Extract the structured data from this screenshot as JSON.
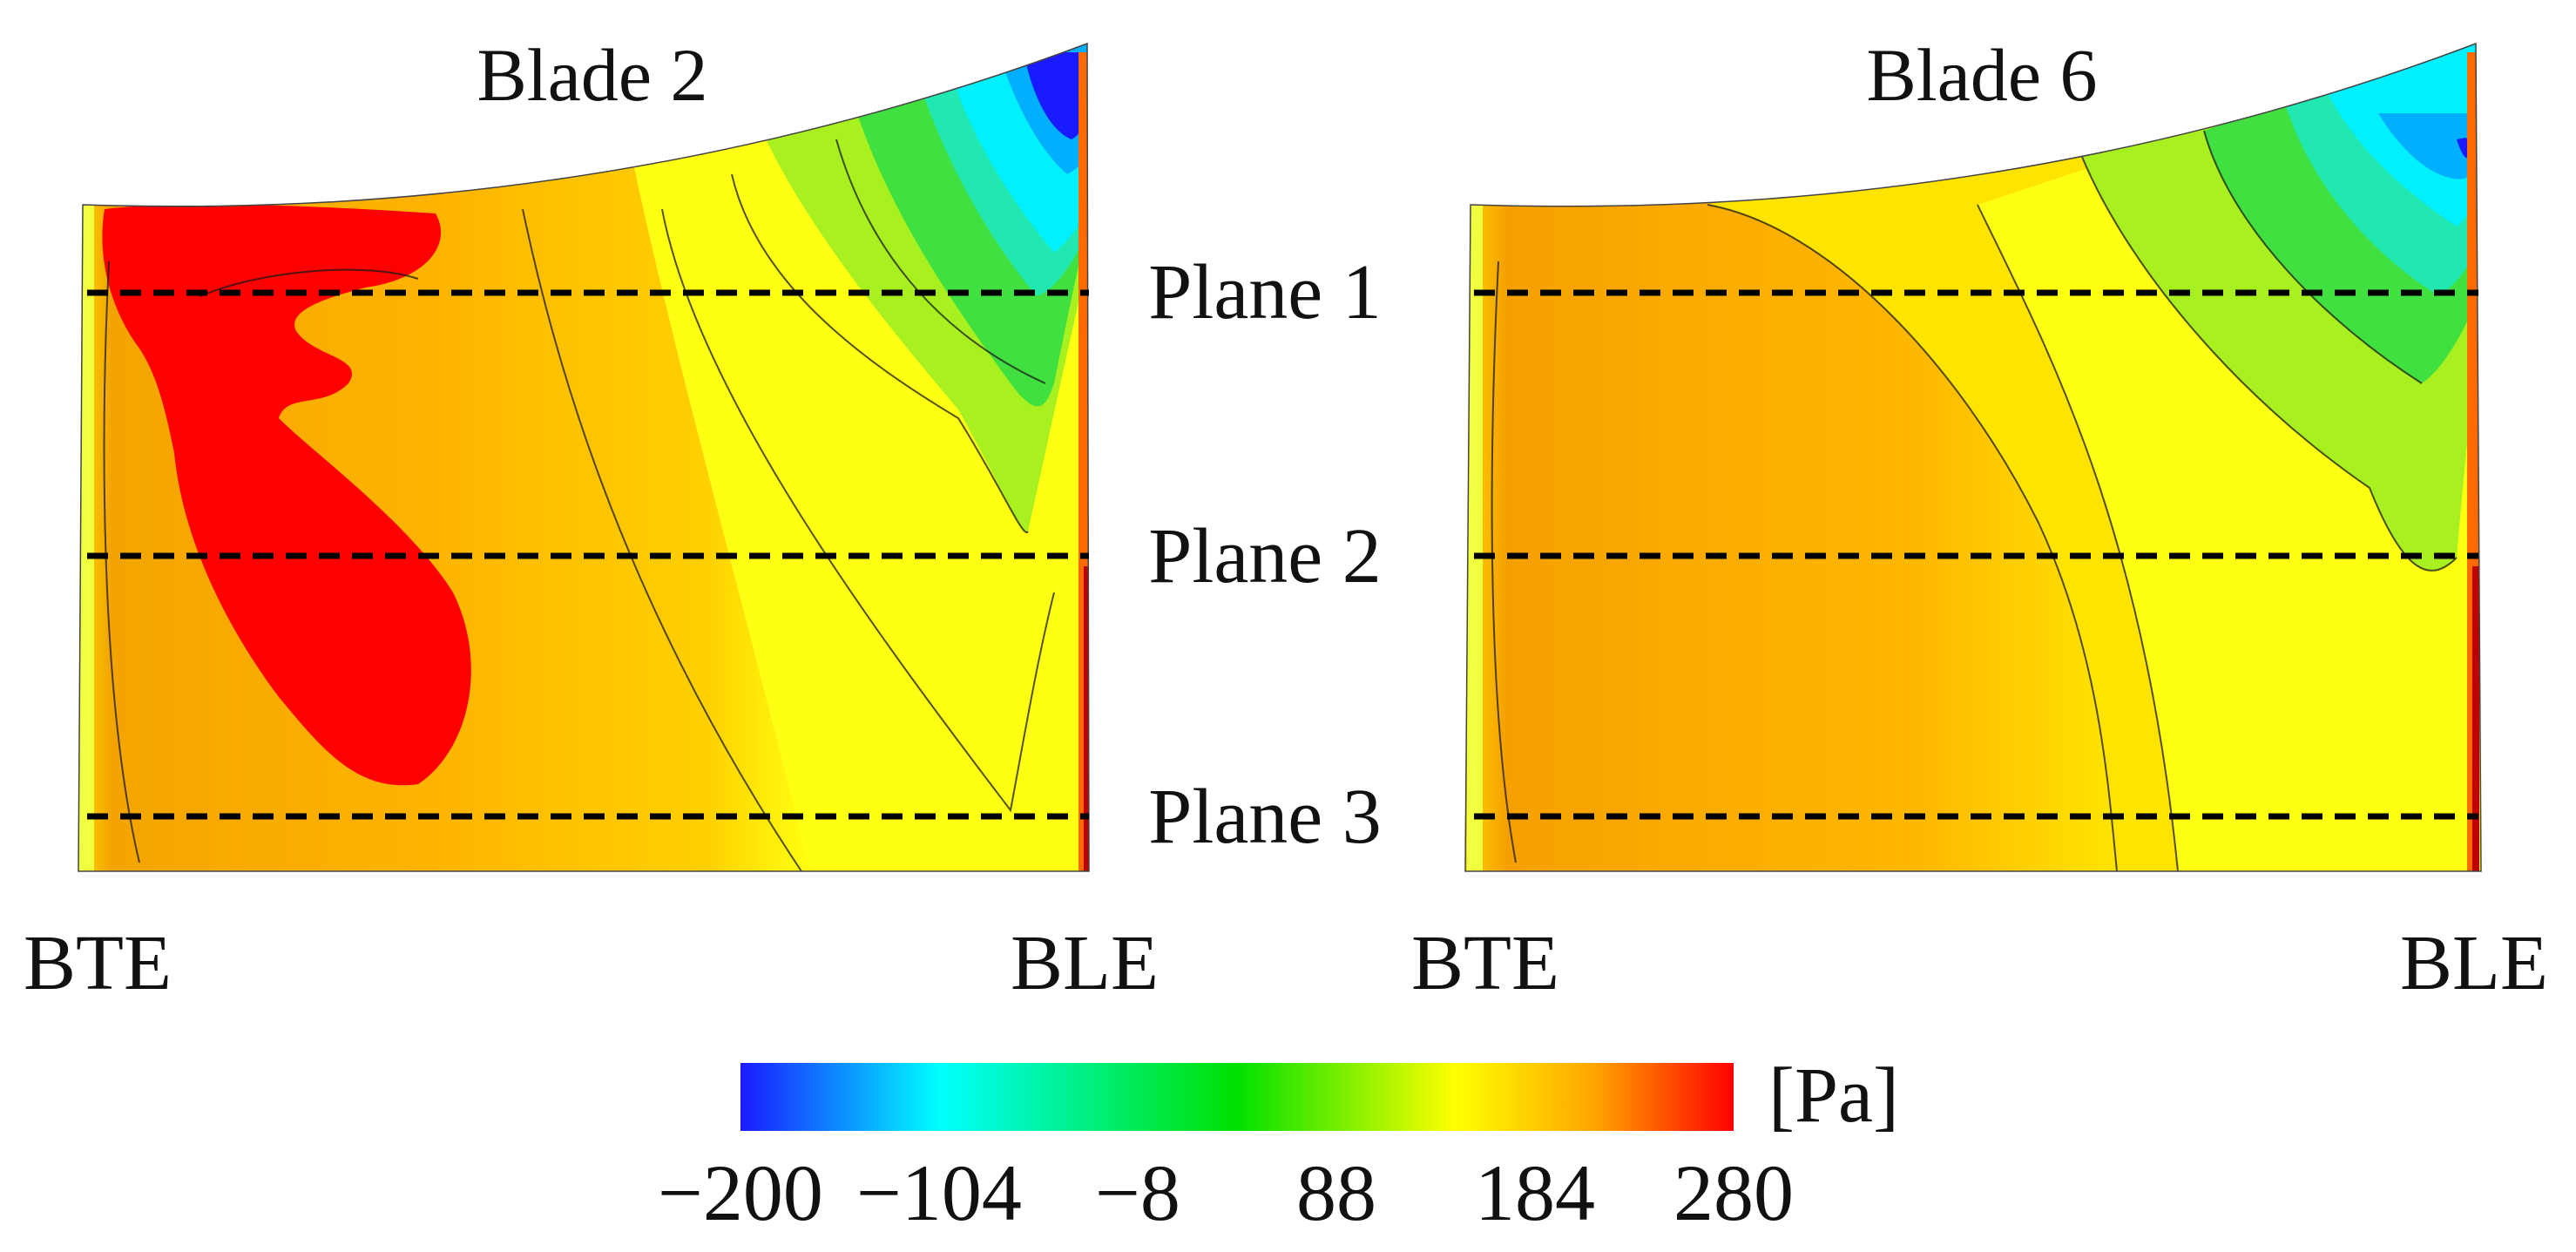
{
  "blades": [
    {
      "title": "Blade 2",
      "trailing_label": "BTE",
      "leading_label": "BLE"
    },
    {
      "title": "Blade 6",
      "trailing_label": "BTE",
      "leading_label": "BLE"
    }
  ],
  "planes": [
    "Plane 1",
    "Plane 2",
    "Plane 3"
  ],
  "colorbar": {
    "unit": "[Pa]",
    "min": -200,
    "max": 280,
    "ticks": [
      "-200",
      "-104",
      "-8",
      "88",
      "184",
      "280"
    ],
    "colors": [
      "#1a1aff",
      "#00ffff",
      "#00e000",
      "#ffff00",
      "#ffa500",
      "#ff0000"
    ]
  }
}
